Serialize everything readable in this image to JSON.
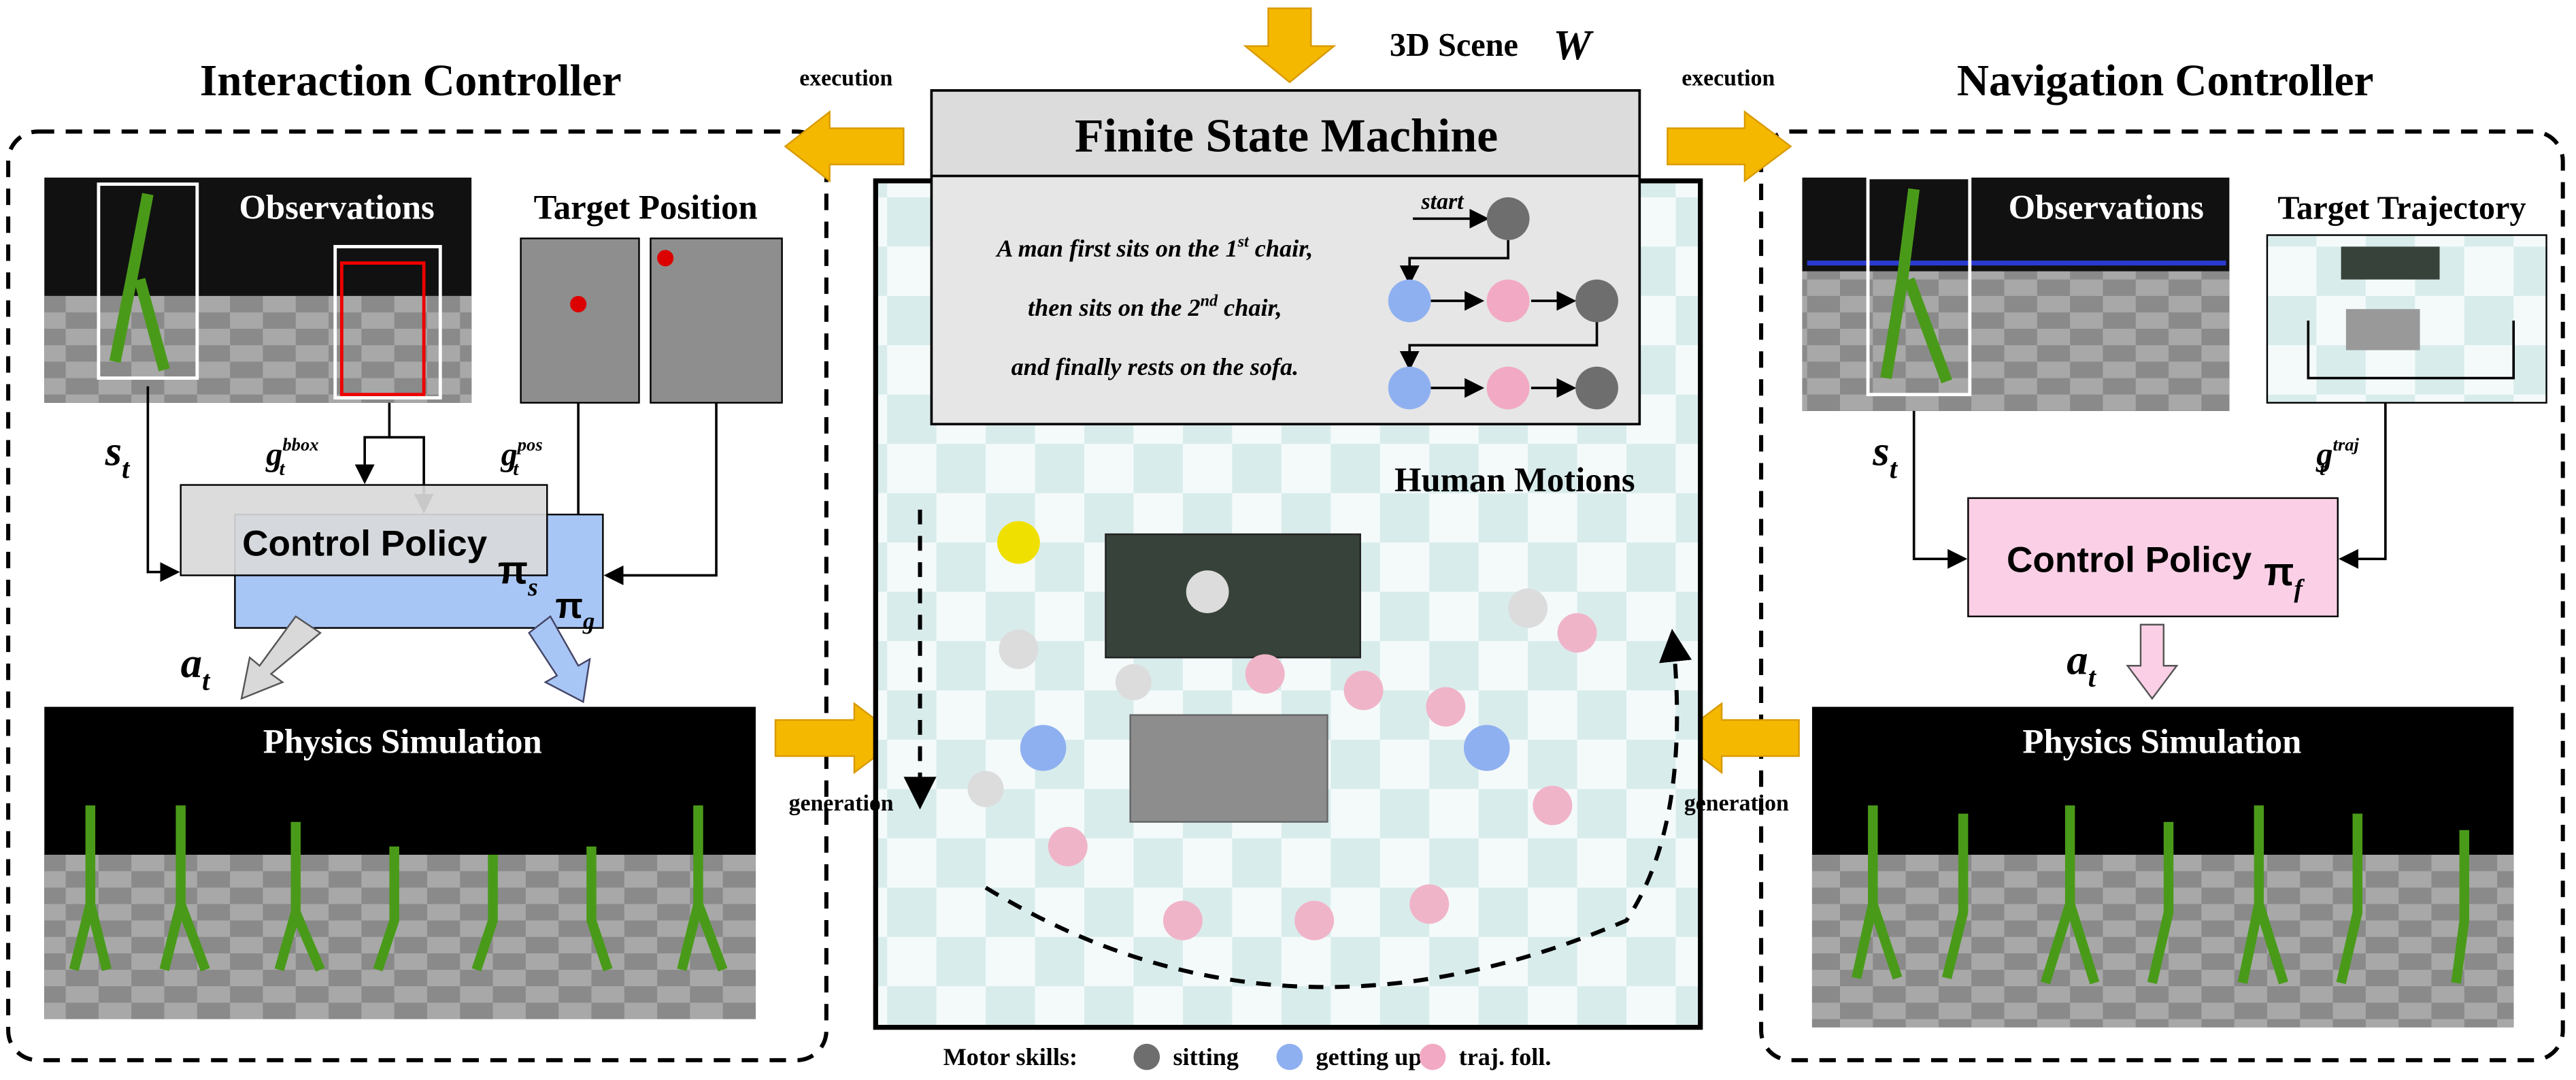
{
  "scene_input": {
    "label": "3D Scene",
    "symbol": "W"
  },
  "fsm": {
    "title": "Finite State Machine",
    "instruction": [
      {
        "text": "A man first sits on the 1",
        "sup": "st",
        "rest": " chair,"
      },
      {
        "text": "then sits on the 2",
        "sup": "nd",
        "rest": " chair,"
      },
      {
        "text": "and finally rests on the sofa."
      }
    ],
    "start": "start"
  },
  "human_motions": "Human Motions",
  "left": {
    "title": "Interaction Controller",
    "execution": "execution",
    "generation": "generation",
    "observations": "Observations",
    "target": "Target Position",
    "state": {
      "base": "s",
      "sub": "t"
    },
    "goal_bbox": {
      "base": "g",
      "sub": "t",
      "sup": "bbox"
    },
    "goal_pos": {
      "base": "g",
      "sub": "t",
      "sup": "pos"
    },
    "policy": "Control Policy",
    "pi_s": {
      "base": "π",
      "sub": "s"
    },
    "pi_g": {
      "base": "π",
      "sub": "g"
    },
    "action": {
      "base": "a",
      "sub": "t"
    },
    "physics": "Physics Simulation"
  },
  "right": {
    "title": "Navigation Controller",
    "execution": "execution",
    "generation": "generation",
    "observations": "Observations",
    "target": "Target Trajectory",
    "state": {
      "base": "s",
      "sub": "t"
    },
    "goal_traj": {
      "base": "g",
      "sub": "t",
      "sup": "traj"
    },
    "policy": "Control Policy",
    "pi_f": {
      "base": "π",
      "sub": "f"
    },
    "action": {
      "base": "a",
      "sub": "t"
    },
    "physics": "Physics Simulation"
  },
  "legend": {
    "title": "Motor skills:",
    "items": [
      {
        "label": "sitting",
        "color": "#6e6e6e"
      },
      {
        "label": "getting up",
        "color": "#8fb0f0"
      },
      {
        "label": "traj. foll.",
        "color": "#f2a9c4"
      }
    ]
  }
}
